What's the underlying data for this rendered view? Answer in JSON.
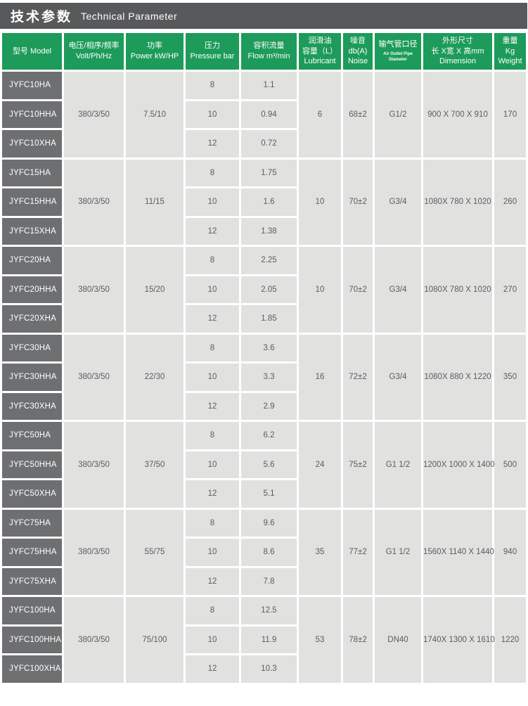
{
  "title": {
    "cn": "技术参数",
    "en": "Technical Parameter"
  },
  "colors": {
    "accent_green": "#1d9b5a",
    "titlebar_gray": "#58595b",
    "model_cell_gray": "#6e6f71",
    "data_cell_gray": "#e1e1e0",
    "border_white": "#ffffff"
  },
  "table": {
    "columns": [
      {
        "id": "model",
        "label": "型号 Model"
      },
      {
        "id": "voltage",
        "label": "电压/相序/频率\nVolt/Ph/Hz"
      },
      {
        "id": "power",
        "label": "功率\nPower kW/HP"
      },
      {
        "id": "pressure",
        "label": "压力\nPressure bar"
      },
      {
        "id": "flow",
        "label": "容积流量\nFlow m³/min"
      },
      {
        "id": "lubricant",
        "label": "润滑油\n容量（L）\nLubricant"
      },
      {
        "id": "noise",
        "label": "噪音\ndb(A)\nNoise"
      },
      {
        "id": "pipe",
        "label": "输气管口径",
        "sub": "Air Outlet Pipe Diameter"
      },
      {
        "id": "dimension",
        "label": "外形尺寸\n长 X宽 X 高mm\nDimension"
      },
      {
        "id": "weight",
        "label": "重量\nKg\nWeight"
      }
    ],
    "groups": [
      {
        "models": [
          "JYFC10HA",
          "JYFC10HHA",
          "JYFC10XHA"
        ],
        "voltage": "380/3/50",
        "power": "7.5/10",
        "pressures": [
          "8",
          "10",
          "12"
        ],
        "flows": [
          "1.1",
          "0.94",
          "0.72"
        ],
        "lubricant": "6",
        "noise": "68±2",
        "pipe": "G1/2",
        "dimension": "900 X 700 X 910",
        "weight": "170"
      },
      {
        "models": [
          "JYFC15HA",
          "JYFC15HHA",
          "JYFC15XHA"
        ],
        "voltage": "380/3/50",
        "power": "11/15",
        "pressures": [
          "8",
          "10",
          "12"
        ],
        "flows": [
          "1.75",
          "1.6",
          "1.38"
        ],
        "lubricant": "10",
        "noise": "70±2",
        "pipe": "G3/4",
        "dimension": "1080X 780 X 1020",
        "weight": "260"
      },
      {
        "models": [
          "JYFC20HA",
          "JYFC20HHA",
          "JYFC20XHA"
        ],
        "voltage": "380/3/50",
        "power": "15/20",
        "pressures": [
          "8",
          "10",
          "12"
        ],
        "flows": [
          "2.25",
          "2.05",
          "1.85"
        ],
        "lubricant": "10",
        "noise": "70±2",
        "pipe": "G3/4",
        "dimension": "1080X 780 X 1020",
        "weight": "270"
      },
      {
        "models": [
          "JYFC30HA",
          "JYFC30HHA",
          "JYFC30XHA"
        ],
        "voltage": "380/3/50",
        "power": "22/30",
        "pressures": [
          "8",
          "10",
          "12"
        ],
        "flows": [
          "3.6",
          "3.3",
          "2.9"
        ],
        "lubricant": "16",
        "noise": "72±2",
        "pipe": "G3/4",
        "dimension": "1080X 880 X 1220",
        "weight": "350"
      },
      {
        "models": [
          "JYFC50HA",
          "JYFC50HHA",
          "JYFC50XHA"
        ],
        "voltage": "380/3/50",
        "power": "37/50",
        "pressures": [
          "8",
          "10",
          "12"
        ],
        "flows": [
          "6.2",
          "5.6",
          "5.1"
        ],
        "lubricant": "24",
        "noise": "75±2",
        "pipe": "G1 1/2",
        "dimension": "1200X 1000 X 1400",
        "weight": "500"
      },
      {
        "models": [
          "JYFC75HA",
          "JYFC75HHA",
          "JYFC75XHA"
        ],
        "voltage": "380/3/50",
        "power": "55/75",
        "pressures": [
          "8",
          "10",
          "12"
        ],
        "flows": [
          "9.6",
          "8.6",
          "7.8"
        ],
        "lubricant": "35",
        "noise": "77±2",
        "pipe": "G1 1/2",
        "dimension": "1560X 1140 X 1440",
        "weight": "940"
      },
      {
        "models": [
          "JYFC100HA",
          "JYFC100HHA",
          "JYFC100XHA"
        ],
        "voltage": "380/3/50",
        "power": "75/100",
        "pressures": [
          "8",
          "10",
          "12"
        ],
        "flows": [
          "12.5",
          "11.9",
          "10.3"
        ],
        "lubricant": "53",
        "noise": "78±2",
        "pipe": "DN40",
        "dimension": "1740X 1300 X 1610",
        "weight": "1220"
      }
    ]
  }
}
